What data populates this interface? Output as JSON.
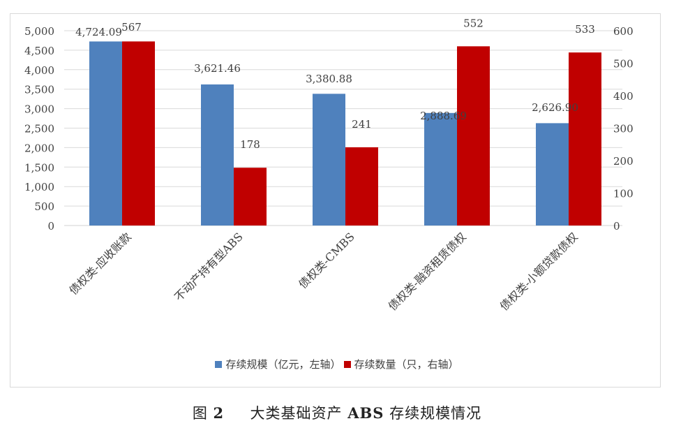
{
  "chart_data": {
    "type": "bar",
    "title": "",
    "caption": "图 2　大类基础资产 ABS 存续规模情况",
    "categories": [
      "债权类-应收账款",
      "不动产持有型ABS",
      "债权类-CMBS",
      "债权类-融资租赁债权",
      "债权类-小额贷款债权"
    ],
    "series": [
      {
        "name": "存续规模（亿元，左轴）",
        "axis": "left",
        "color": "#4f81bd",
        "values": [
          4724.09,
          3621.46,
          3380.88,
          2888.69,
          2626.9
        ],
        "labels": [
          "4,724.09",
          "3,621.46",
          "3,380.88",
          "2,888.69",
          "2,626.90"
        ]
      },
      {
        "name": "存续数量（只，右轴）",
        "axis": "right",
        "color": "#c00000",
        "values": [
          567,
          178,
          241,
          552,
          533
        ],
        "labels": [
          "567",
          "178",
          "241",
          "552",
          "533"
        ]
      }
    ],
    "y_left": {
      "ylim": [
        0,
        5000
      ],
      "ticks": [
        "0",
        "500",
        "1,000",
        "1,500",
        "2,000",
        "2,500",
        "3,000",
        "3,500",
        "4,000",
        "4,500",
        "5,000"
      ]
    },
    "y_right": {
      "ylim": [
        0,
        600
      ],
      "ticks": [
        "0",
        "100",
        "200",
        "300",
        "400",
        "500",
        "600"
      ]
    },
    "xlabel": "",
    "ylabel": "",
    "grid": true,
    "legend_position": "bottom"
  },
  "legend": {
    "items": [
      {
        "label": "存续规模（亿元，左轴）",
        "color": "#4f81bd"
      },
      {
        "label": "存续数量（只，右轴）",
        "color": "#c00000"
      }
    ]
  },
  "caption": {
    "prefix": "图",
    "number": "2",
    "text_before": "大类基础资产",
    "abs": "ABS",
    "text_after": "存续规模情况"
  }
}
